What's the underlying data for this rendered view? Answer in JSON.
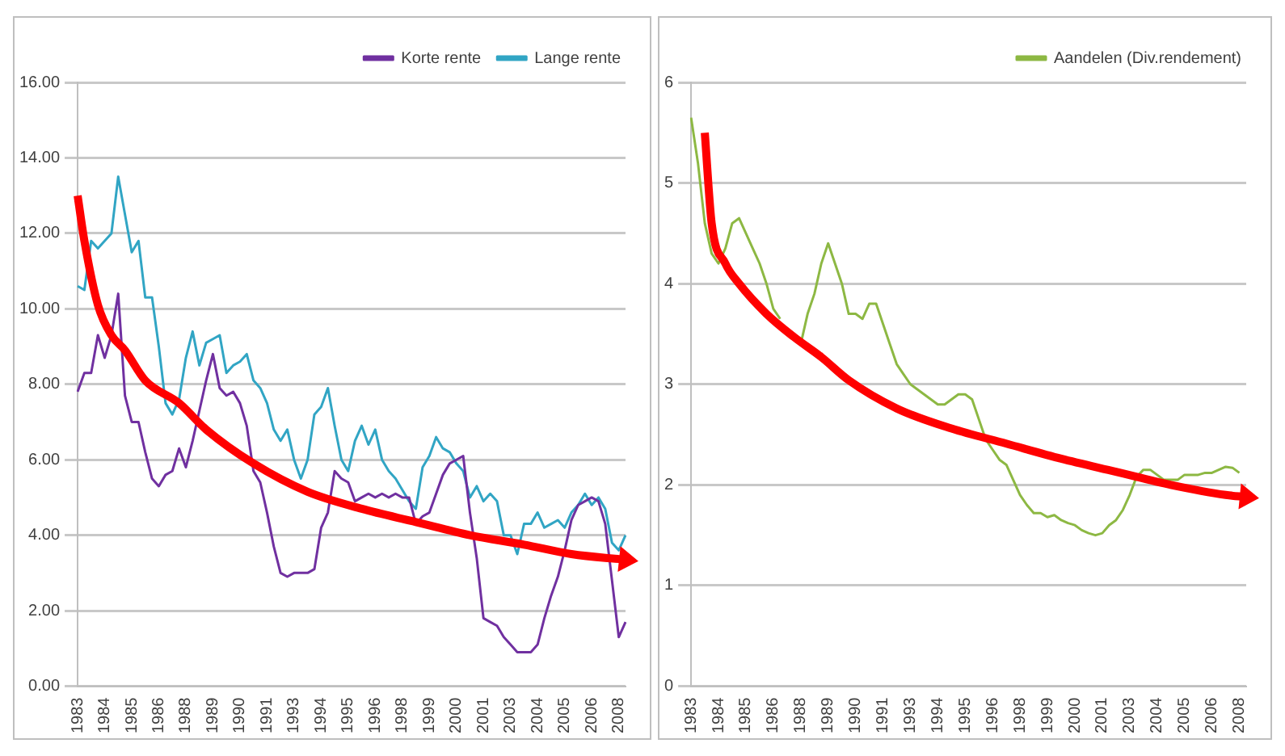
{
  "chart_data": [
    {
      "type": "line",
      "categories": [
        "1983",
        null,
        null,
        null,
        "1984",
        null,
        null,
        null,
        "1985",
        null,
        null,
        null,
        "1986",
        null,
        null,
        null,
        "1988",
        null,
        null,
        null,
        "1989",
        null,
        null,
        null,
        "1990",
        null,
        null,
        null,
        "1991",
        null,
        null,
        null,
        "1993",
        null,
        null,
        null,
        "1994",
        null,
        null,
        null,
        "1995",
        null,
        null,
        null,
        "1996",
        null,
        null,
        null,
        "1998",
        null,
        null,
        null,
        "1999",
        null,
        null,
        null,
        "2000",
        null,
        null,
        null,
        "2001",
        null,
        null,
        null,
        "2003",
        null,
        null,
        null,
        "2004",
        null,
        null,
        null,
        "2005",
        null,
        null,
        null,
        "2006",
        null,
        null,
        null,
        "2008",
        null
      ],
      "series": [
        {
          "name": "Korte rente",
          "color": "#7030a0",
          "values": [
            7.8,
            8.3,
            8.3,
            9.3,
            8.7,
            9.3,
            10.4,
            7.7,
            7.0,
            7.0,
            6.2,
            5.5,
            5.3,
            5.6,
            5.7,
            6.3,
            5.8,
            6.5,
            7.3,
            8.1,
            8.8,
            7.9,
            7.7,
            7.8,
            7.5,
            6.9,
            5.7,
            5.4,
            4.6,
            3.7,
            3.0,
            2.9,
            3.0,
            3.0,
            3.0,
            3.1,
            4.2,
            4.6,
            5.7,
            5.5,
            5.4,
            4.9,
            5.0,
            5.1,
            5.0,
            5.1,
            5.0,
            5.1,
            5.0,
            5.0,
            4.3,
            4.5,
            4.6,
            5.1,
            5.6,
            5.9,
            6.0,
            6.1,
            4.6,
            3.4,
            1.8,
            1.7,
            1.6,
            1.3,
            1.1,
            0.9,
            0.9,
            0.9,
            1.1,
            1.8,
            2.4,
            2.9,
            3.6,
            4.4,
            4.8,
            4.9,
            5.0,
            4.9,
            4.3,
            2.8,
            1.3,
            1.7
          ]
        },
        {
          "name": "Lange rente",
          "color": "#31a5c4",
          "values": [
            10.6,
            10.5,
            11.8,
            11.6,
            11.8,
            12.0,
            13.5,
            12.5,
            11.5,
            11.8,
            10.3,
            10.3,
            9.0,
            7.5,
            7.2,
            7.6,
            8.7,
            9.4,
            8.5,
            9.1,
            9.2,
            9.3,
            8.3,
            8.5,
            8.6,
            8.8,
            8.1,
            7.9,
            7.5,
            6.8,
            6.5,
            6.8,
            6.0,
            5.5,
            6.0,
            7.2,
            7.4,
            7.9,
            6.9,
            6.0,
            5.7,
            6.5,
            6.9,
            6.4,
            6.8,
            6.0,
            5.7,
            5.5,
            5.2,
            4.9,
            4.7,
            5.8,
            6.1,
            6.6,
            6.3,
            6.2,
            5.9,
            5.7,
            5.0,
            5.3,
            4.9,
            5.1,
            4.9,
            4.0,
            4.0,
            3.5,
            4.3,
            4.3,
            4.6,
            4.2,
            4.3,
            4.4,
            4.2,
            4.6,
            4.8,
            5.1,
            4.8,
            5.0,
            4.7,
            3.8,
            3.6,
            4.0
          ]
        },
        {
          "color": "#ff0000",
          "values": [
            13.0,
            11.8,
            null,
            10.1,
            null,
            9.3,
            null,
            8.9,
            null,
            null,
            8.1,
            null,
            null,
            null,
            null,
            7.5,
            null,
            null,
            null,
            6.8,
            null,
            null,
            null,
            null,
            null,
            null,
            5.9,
            null,
            null,
            null,
            null,
            null,
            null,
            null,
            5.15,
            null,
            null,
            null,
            null,
            null,
            null,
            null,
            4.7,
            null,
            null,
            null,
            null,
            null,
            null,
            null,
            4.35,
            null,
            null,
            null,
            null,
            null,
            null,
            null,
            4.0,
            null,
            null,
            null,
            null,
            null,
            null,
            null,
            3.75,
            null,
            null,
            null,
            null,
            null,
            null,
            3.5,
            null,
            null,
            null,
            null,
            null,
            null,
            null,
            3.35
          ]
        }
      ],
      "ylim": [
        0,
        16
      ],
      "yticks": [
        {
          "value": 0,
          "label": "0.00"
        },
        {
          "value": 2,
          "label": "2.00"
        },
        {
          "value": 4,
          "label": "4.00"
        },
        {
          "value": 6,
          "label": "6.00"
        },
        {
          "value": 8,
          "label": "8.00"
        },
        {
          "value": 10,
          "label": "10.00"
        },
        {
          "value": 12,
          "label": "12.00"
        },
        {
          "value": 14,
          "label": "14.00"
        },
        {
          "value": 16,
          "label": "16.00"
        }
      ],
      "grid": "y",
      "legend": "top right",
      "marker": "none",
      "line_style": "solid"
    },
    {
      "type": "line",
      "categories": [
        "1983",
        null,
        null,
        null,
        "1984",
        null,
        null,
        null,
        "1985",
        null,
        null,
        null,
        "1986",
        null,
        null,
        null,
        "1988",
        null,
        null,
        null,
        "1989",
        null,
        null,
        null,
        "1990",
        null,
        null,
        null,
        "1991",
        null,
        null,
        null,
        "1993",
        null,
        null,
        null,
        "1994",
        null,
        null,
        null,
        "1995",
        null,
        null,
        null,
        "1996",
        null,
        null,
        null,
        "1998",
        null,
        null,
        null,
        "1999",
        null,
        null,
        null,
        "2000",
        null,
        null,
        null,
        "2001",
        null,
        null,
        null,
        "2003",
        null,
        null,
        null,
        "2004",
        null,
        null,
        null,
        "2005",
        null,
        null,
        null,
        "2006",
        null,
        null,
        null,
        "2008",
        null
      ],
      "series": [
        {
          "name": "Aandelen (Div.rendement)",
          "color": "#8db843",
          "values": [
            5.65,
            5.2,
            4.6,
            4.3,
            4.2,
            4.35,
            4.6,
            4.65,
            4.5,
            4.35,
            4.2,
            4.0,
            3.75,
            3.65,
            null,
            null,
            3.4,
            3.7,
            3.9,
            4.2,
            4.4,
            4.2,
            4.0,
            3.7,
            3.7,
            3.65,
            3.8,
            3.8,
            3.6,
            3.4,
            3.2,
            3.1,
            3.0,
            2.95,
            2.9,
            2.85,
            2.8,
            2.8,
            2.85,
            2.9,
            2.9,
            2.85,
            2.65,
            2.45,
            2.35,
            2.25,
            2.2,
            2.05,
            1.9,
            1.8,
            1.72,
            1.72,
            1.68,
            1.7,
            1.65,
            1.62,
            1.6,
            1.55,
            1.52,
            1.5,
            1.52,
            1.6,
            1.65,
            1.75,
            1.9,
            2.08,
            2.15,
            2.15,
            2.1,
            2.05,
            2.05,
            2.05,
            2.1,
            2.1,
            2.1,
            2.12,
            2.12,
            2.15,
            2.18,
            2.17,
            2.12,
            null
          ]
        },
        {
          "color": "#ff0000",
          "values": [
            null,
            null,
            5.5,
            4.6,
            null,
            4.2,
            null,
            4.0,
            null,
            null,
            null,
            3.7,
            null,
            null,
            null,
            3.47,
            null,
            null,
            null,
            3.27,
            null,
            null,
            null,
            3.04,
            null,
            null,
            null,
            null,
            null,
            null,
            2.76,
            null,
            null,
            null,
            null,
            null,
            null,
            null,
            2.56,
            null,
            null,
            null,
            null,
            null,
            null,
            null,
            2.41,
            null,
            null,
            null,
            null,
            null,
            null,
            null,
            2.26,
            null,
            null,
            null,
            null,
            null,
            null,
            null,
            2.13,
            null,
            null,
            null,
            null,
            null,
            null,
            null,
            2.0,
            null,
            null,
            null,
            null,
            null,
            null,
            null,
            1.9,
            null,
            null,
            1.88
          ]
        }
      ],
      "ylim": [
        0,
        6
      ],
      "yticks": [
        0,
        1,
        2,
        3,
        4,
        5,
        6
      ],
      "grid": "y",
      "legend": "top right",
      "marker": "none",
      "line_style": "solid"
    }
  ]
}
